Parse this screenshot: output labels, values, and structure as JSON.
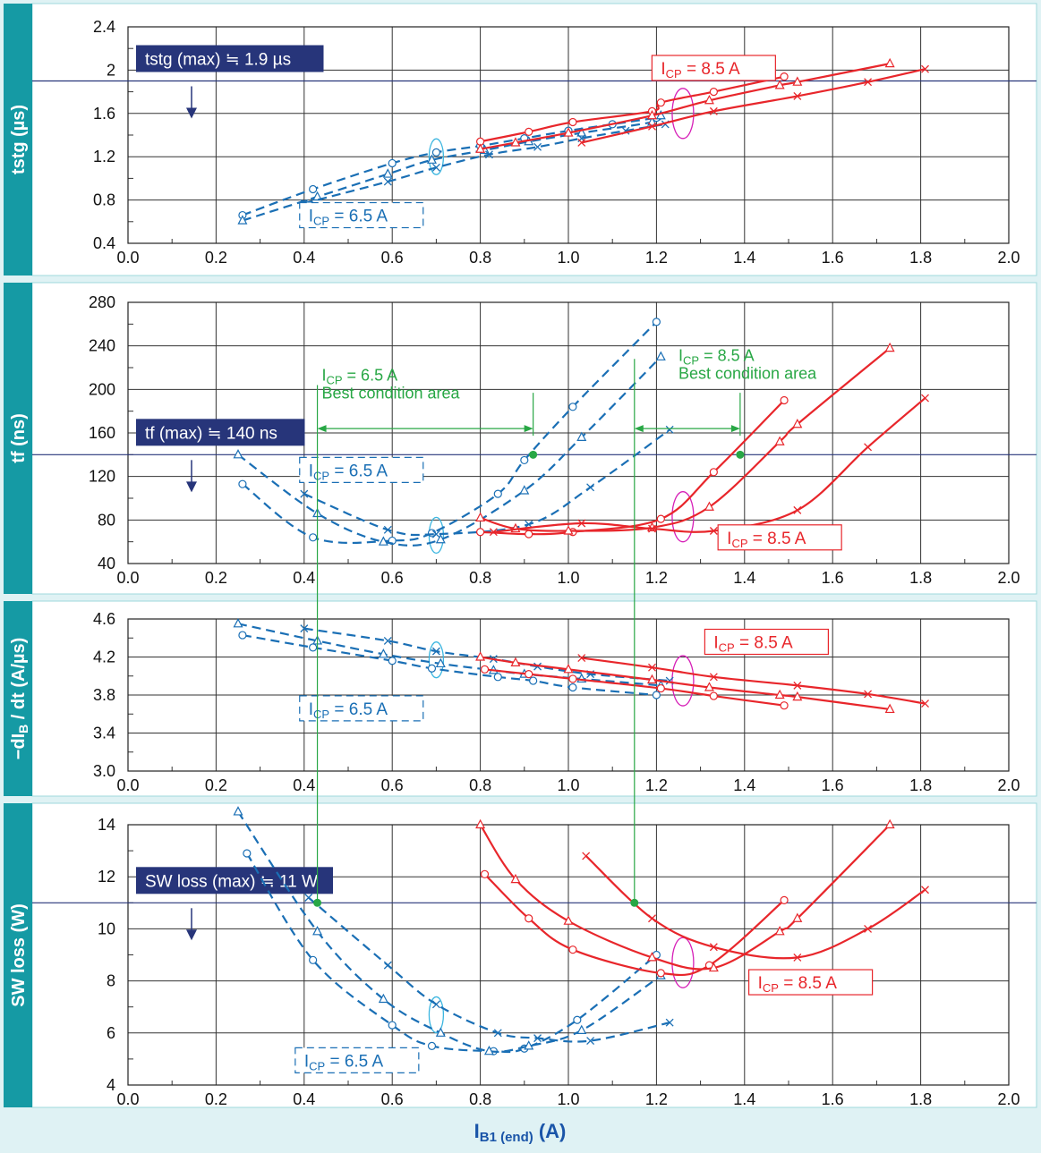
{
  "figure": {
    "xlabel": "IB1 (end) (A)",
    "xlabel_main": "I",
    "xlabel_sub": "B1 (end)",
    "xlabel_unit": " (A)"
  },
  "colors": {
    "frame": "#e8f6f8",
    "sidebar": "#159aa4",
    "blue": "#1a6fb5",
    "red": "#e8262b",
    "green": "#28a745",
    "navy": "#27357a",
    "magenta": "#d61fb7",
    "cyan": "#3cb6e0"
  },
  "chart_data": [
    {
      "type": "line",
      "ylabel": "tstg (µs)",
      "xlim": [
        0.0,
        2.0
      ],
      "ylim": [
        0.4,
        2.4
      ],
      "xticks": [
        "0.0",
        "0.2",
        "0.4",
        "0.6",
        "0.8",
        "1.0",
        "1.2",
        "1.4",
        "1.6",
        "1.8",
        "2.0"
      ],
      "yticks": [
        "0.4",
        "0.8",
        "1.2",
        "1.6",
        "2",
        "2.4"
      ],
      "limit": {
        "value": 1.9,
        "label": "tstg (max) ≒ 1.9 µs"
      },
      "labels": [
        {
          "sub": "CP",
          "text": "I",
          "tail": " = 6.5 A",
          "color": "blue",
          "x": 0.53,
          "y": 0.66,
          "dashed": true
        },
        {
          "sub": "CP",
          "text": "I",
          "tail": " = 8.5 A",
          "color": "red",
          "x": 1.33,
          "y": 2.02,
          "dashed": false
        }
      ],
      "ellipses": [
        {
          "x": 0.7,
          "y": 1.2,
          "color": "cyan"
        },
        {
          "x": 1.26,
          "y": 1.6,
          "color": "magenta"
        }
      ],
      "series": [
        {
          "name": "",
          "group": "6.5",
          "marker": "o",
          "dashed": true,
          "x": [
            0.26,
            0.42,
            0.6,
            0.7,
            0.8,
            0.9,
            1.0,
            1.1,
            1.2
          ],
          "y": [
            0.66,
            0.9,
            1.14,
            1.24,
            1.3,
            1.37,
            1.44,
            1.5,
            1.56
          ]
        },
        {
          "name": "",
          "group": "6.5",
          "marker": "^",
          "dashed": true,
          "x": [
            0.26,
            0.43,
            0.59,
            0.69,
            0.81,
            0.91,
            1.03,
            1.19,
            1.21
          ],
          "y": [
            0.61,
            0.83,
            1.04,
            1.17,
            1.26,
            1.34,
            1.42,
            1.52,
            1.58
          ]
        },
        {
          "name": "",
          "group": "6.5",
          "marker": "x",
          "dashed": true,
          "x": [
            0.4,
            0.59,
            0.7,
            0.82,
            0.93,
            1.03,
            1.13,
            1.22
          ],
          "y": [
            0.77,
            0.97,
            1.1,
            1.22,
            1.29,
            1.37,
            1.44,
            1.5
          ]
        },
        {
          "name": "",
          "group": "8.5",
          "marker": "o",
          "dashed": false,
          "x": [
            0.8,
            0.91,
            1.01,
            1.19,
            1.21,
            1.33,
            1.49
          ],
          "y": [
            1.34,
            1.43,
            1.52,
            1.62,
            1.7,
            1.8,
            1.94
          ]
        },
        {
          "name": "",
          "group": "8.5",
          "marker": "^",
          "dashed": false,
          "x": [
            0.8,
            0.88,
            1.0,
            1.19,
            1.32,
            1.48,
            1.52,
            1.73
          ],
          "y": [
            1.27,
            1.33,
            1.42,
            1.58,
            1.72,
            1.86,
            1.89,
            2.06
          ]
        },
        {
          "name": "",
          "group": "8.5",
          "marker": "x",
          "dashed": false,
          "x": [
            1.03,
            1.19,
            1.33,
            1.52,
            1.68,
            1.81
          ],
          "y": [
            1.33,
            1.48,
            1.62,
            1.76,
            1.89,
            2.01
          ]
        }
      ]
    },
    {
      "type": "line",
      "ylabel": "tf (ns)",
      "xlim": [
        0.0,
        2.0
      ],
      "ylim": [
        40,
        280
      ],
      "xticks": [
        "0.0",
        "0.2",
        "0.4",
        "0.6",
        "0.8",
        "1.0",
        "1.2",
        "1.4",
        "1.6",
        "1.8",
        "2.0"
      ],
      "yticks": [
        "40",
        "80",
        "120",
        "160",
        "200",
        "240",
        "280"
      ],
      "limit": {
        "value": 140,
        "label": "tf (max) ≒ 140 ns"
      },
      "labels": [
        {
          "sub": "CP",
          "text": "I",
          "tail": " = 6.5 A",
          "color": "blue",
          "x": 0.53,
          "y": 126,
          "dashed": true
        },
        {
          "sub": "CP",
          "text": "I",
          "tail": " = 8.5 A",
          "color": "red",
          "x": 1.48,
          "y": 64,
          "dashed": false
        }
      ],
      "annotations": [
        {
          "line1": "ICP = 6.5 A",
          "sub": "CP",
          "line2": "Best condition area",
          "x": 0.44,
          "y": 208,
          "x0": 0.43,
          "x1": 0.92,
          "ya": 164
        },
        {
          "line1": "ICP = 8.5 A",
          "sub": "CP",
          "line2": "Best condition area",
          "x": 1.25,
          "y": 226,
          "x0": 1.15,
          "x1": 1.39,
          "ya": 164
        }
      ],
      "crossings": [
        {
          "x": 0.92,
          "y": 140
        },
        {
          "x": 1.39,
          "y": 140
        }
      ],
      "ellipses": [
        {
          "x": 0.7,
          "y": 66,
          "color": "cyan"
        },
        {
          "x": 1.26,
          "y": 83,
          "color": "magenta"
        }
      ],
      "series": [
        {
          "name": "",
          "group": "6.5",
          "marker": "o",
          "dashed": true,
          "x": [
            0.26,
            0.42,
            0.6,
            0.69,
            0.84,
            0.9,
            1.01,
            1.2
          ],
          "y": [
            113,
            64,
            61,
            68,
            104,
            135,
            184,
            262
          ]
        },
        {
          "name": "",
          "group": "6.5",
          "marker": "^",
          "dashed": true,
          "x": [
            0.25,
            0.43,
            0.58,
            0.71,
            0.9,
            1.03,
            1.21
          ],
          "y": [
            140,
            86,
            60,
            62,
            107,
            156,
            230
          ]
        },
        {
          "name": "",
          "group": "6.5",
          "marker": "x",
          "dashed": true,
          "x": [
            0.4,
            0.59,
            0.7,
            0.91,
            1.05,
            1.23
          ],
          "y": [
            104,
            71,
            67,
            76,
            110,
            163
          ]
        },
        {
          "name": "",
          "group": "8.5",
          "marker": "o",
          "dashed": false,
          "x": [
            0.8,
            0.91,
            1.01,
            1.21,
            1.33,
            1.49
          ],
          "y": [
            69,
            67,
            69,
            81,
            124,
            190
          ]
        },
        {
          "name": "",
          "group": "8.5",
          "marker": "^",
          "dashed": false,
          "x": [
            0.8,
            0.88,
            1.0,
            1.19,
            1.32,
            1.48,
            1.52,
            1.73
          ],
          "y": [
            82,
            72,
            70,
            73,
            92,
            152,
            168,
            238
          ]
        },
        {
          "name": "",
          "group": "8.5",
          "marker": "x",
          "dashed": false,
          "x": [
            0.83,
            1.03,
            1.19,
            1.33,
            1.52,
            1.68,
            1.81
          ],
          "y": [
            69,
            77,
            72,
            70,
            89,
            147,
            192
          ]
        }
      ]
    },
    {
      "type": "line",
      "ylabel": "−dIB / dt (A/µs)",
      "ylabel_main": "−dI",
      "ylabel_sub": "B",
      "ylabel_tail": " / dt (A/µs)",
      "xlim": [
        0.0,
        2.0
      ],
      "ylim": [
        3.0,
        4.6
      ],
      "xticks": [
        "0.0",
        "0.2",
        "0.4",
        "0.6",
        "0.8",
        "1.0",
        "1.2",
        "1.4",
        "1.6",
        "1.8",
        "2.0"
      ],
      "yticks": [
        "3.0",
        "3.4",
        "3.8",
        "4.2",
        "4.6"
      ],
      "labels": [
        {
          "sub": "CP",
          "text": "I",
          "tail": " = 6.5 A",
          "color": "blue",
          "x": 0.53,
          "y": 3.66,
          "dashed": true
        },
        {
          "sub": "CP",
          "text": "I",
          "tail": " = 8.5 A",
          "color": "red",
          "x": 1.45,
          "y": 4.36,
          "dashed": false
        }
      ],
      "ellipses": [
        {
          "x": 0.7,
          "y": 4.17,
          "color": "cyan"
        },
        {
          "x": 1.26,
          "y": 3.95,
          "color": "magenta"
        }
      ],
      "series": [
        {
          "name": "",
          "group": "6.5",
          "marker": "o",
          "dashed": true,
          "x": [
            0.26,
            0.42,
            0.6,
            0.69,
            0.84,
            0.92,
            1.01,
            1.2
          ],
          "y": [
            4.43,
            4.3,
            4.16,
            4.08,
            3.99,
            3.95,
            3.88,
            3.8
          ]
        },
        {
          "name": "",
          "group": "6.5",
          "marker": "^",
          "dashed": true,
          "x": [
            0.25,
            0.43,
            0.58,
            0.71,
            0.83,
            0.9,
            1.03,
            1.21
          ],
          "y": [
            4.55,
            4.37,
            4.23,
            4.13,
            4.06,
            4.02,
            3.97,
            3.9
          ]
        },
        {
          "name": "",
          "group": "6.5",
          "marker": "x",
          "dashed": true,
          "x": [
            0.4,
            0.59,
            0.7,
            0.83,
            0.93,
            1.05,
            1.23
          ],
          "y": [
            4.5,
            4.37,
            4.26,
            4.18,
            4.1,
            4.02,
            3.95
          ]
        },
        {
          "name": "",
          "group": "8.5",
          "marker": "o",
          "dashed": false,
          "x": [
            0.81,
            0.91,
            1.01,
            1.21,
            1.33,
            1.49
          ],
          "y": [
            4.07,
            4.02,
            3.97,
            3.87,
            3.79,
            3.69
          ]
        },
        {
          "name": "",
          "group": "8.5",
          "marker": "^",
          "dashed": false,
          "x": [
            0.8,
            0.88,
            1.0,
            1.19,
            1.32,
            1.48,
            1.52,
            1.73
          ],
          "y": [
            4.2,
            4.14,
            4.07,
            3.96,
            3.88,
            3.8,
            3.78,
            3.65
          ]
        },
        {
          "name": "",
          "group": "8.5",
          "marker": "x",
          "dashed": false,
          "x": [
            1.03,
            1.19,
            1.33,
            1.52,
            1.68,
            1.81
          ],
          "y": [
            4.19,
            4.09,
            3.99,
            3.9,
            3.81,
            3.71
          ]
        }
      ]
    },
    {
      "type": "line",
      "ylabel": "SW loss (W)",
      "xlim": [
        0.0,
        2.0
      ],
      "ylim": [
        4,
        14
      ],
      "xticks": [
        "0.0",
        "0.2",
        "0.4",
        "0.6",
        "0.8",
        "1.0",
        "1.2",
        "1.4",
        "1.6",
        "1.8",
        "2.0"
      ],
      "yticks": [
        "4",
        "6",
        "8",
        "10",
        "12",
        "14"
      ],
      "limit": {
        "value": 11,
        "label": "SW loss (max) ≒ 11 W"
      },
      "labels": [
        {
          "sub": "CP",
          "text": "I",
          "tail": " = 6.5 A",
          "color": "blue",
          "x": 0.52,
          "y": 4.95,
          "dashed": true
        },
        {
          "sub": "CP",
          "text": "I",
          "tail": " = 8.5 A",
          "color": "red",
          "x": 1.55,
          "y": 7.95,
          "dashed": false
        }
      ],
      "crossings": [
        {
          "x": 0.43,
          "y": 11
        },
        {
          "x": 1.15,
          "y": 11
        }
      ],
      "ellipses": [
        {
          "x": 0.7,
          "y": 6.7,
          "color": "cyan"
        },
        {
          "x": 1.26,
          "y": 8.7,
          "color": "magenta"
        }
      ],
      "series": [
        {
          "name": "",
          "group": "6.5",
          "marker": "o",
          "dashed": true,
          "x": [
            0.27,
            0.42,
            0.6,
            0.69,
            0.83,
            0.9,
            1.02,
            1.2
          ],
          "y": [
            12.9,
            8.8,
            6.3,
            5.5,
            5.3,
            5.4,
            6.5,
            9.0
          ]
        },
        {
          "name": "",
          "group": "6.5",
          "marker": "^",
          "dashed": true,
          "x": [
            0.25,
            0.43,
            0.58,
            0.71,
            0.82,
            0.91,
            1.03,
            1.21
          ],
          "y": [
            14.5,
            9.9,
            7.3,
            6.0,
            5.3,
            5.5,
            6.1,
            8.2
          ]
        },
        {
          "name": "",
          "group": "6.5",
          "marker": "x",
          "dashed": true,
          "x": [
            0.41,
            0.59,
            0.7,
            0.84,
            0.93,
            1.05,
            1.23
          ],
          "y": [
            11.2,
            8.6,
            7.1,
            6.0,
            5.8,
            5.7,
            6.4
          ]
        },
        {
          "name": "",
          "group": "8.5",
          "marker": "o",
          "dashed": false,
          "x": [
            0.81,
            0.91,
            1.01,
            1.21,
            1.32,
            1.49
          ],
          "y": [
            12.1,
            10.4,
            9.2,
            8.3,
            8.6,
            11.1
          ]
        },
        {
          "name": "",
          "group": "8.5",
          "marker": "^",
          "dashed": false,
          "x": [
            0.8,
            0.88,
            1.0,
            1.19,
            1.33,
            1.48,
            1.52,
            1.73
          ],
          "y": [
            14.0,
            11.9,
            10.3,
            8.9,
            8.5,
            9.9,
            10.4,
            14.0
          ]
        },
        {
          "name": "",
          "group": "8.5",
          "marker": "x",
          "dashed": false,
          "x": [
            1.04,
            1.19,
            1.33,
            1.52,
            1.68,
            1.81
          ],
          "y": [
            12.8,
            10.4,
            9.3,
            8.9,
            10.0,
            11.5
          ]
        }
      ]
    }
  ]
}
